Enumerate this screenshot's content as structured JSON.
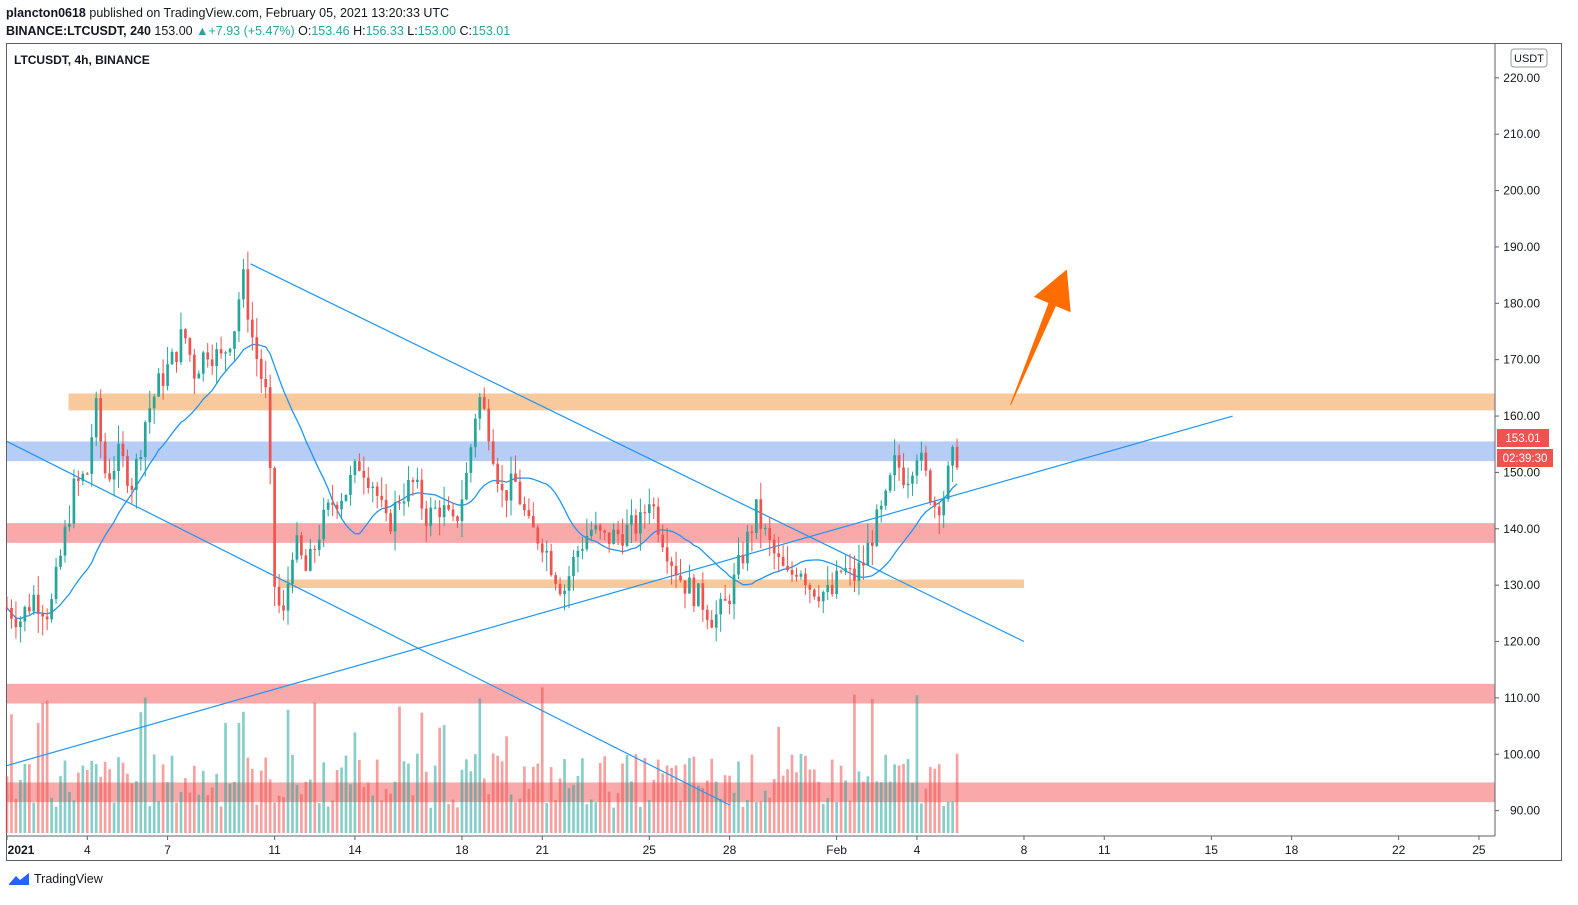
{
  "header": {
    "publisher": "plancton0618",
    "published_text": "published on TradingView.com, February 05, 2021 13:20:33 UTC",
    "symbol_line": "BINANCE:LTCUSDT, 240",
    "last": "153.00",
    "change": "+7.93 (+5.47%)",
    "o_label": "O:",
    "o": "153.46",
    "h_label": "H:",
    "h": "156.33",
    "l_label": "L:",
    "l": "153.00",
    "c_label": "C:",
    "c": "153.01"
  },
  "chart_title": "LTCUSDT, 4h, BINANCE",
  "currency_label": "USDT",
  "price_label": "153.01",
  "countdown_label": "02:39:30",
  "branding": "TradingView",
  "colors": {
    "up": "#26a69a",
    "down": "#ef5350",
    "ma": "#2196f3",
    "trend": "#2196f3",
    "orange_zone": "#f6c08c",
    "blue_zone": "#a9c4f5",
    "red_zone": "#f89a9a",
    "arrow": "#ff6d00"
  },
  "chart_data": {
    "type": "candlestick",
    "symbol": "LTCUSDT",
    "interval": "4h",
    "exchange": "BINANCE",
    "y_ticks": [
      220,
      210,
      200,
      190,
      180,
      170,
      160,
      150,
      140,
      130,
      120,
      110,
      100,
      90
    ],
    "y_range": [
      85.5,
      226
    ],
    "x_ticks": [
      {
        "label": "2021",
        "day": 1
      },
      {
        "label": "4",
        "day": 4
      },
      {
        "label": "7",
        "day": 7
      },
      {
        "label": "11",
        "day": 11
      },
      {
        "label": "14",
        "day": 14
      },
      {
        "label": "18",
        "day": 18
      },
      {
        "label": "21",
        "day": 21
      },
      {
        "label": "25",
        "day": 25
      },
      {
        "label": "28",
        "day": 28
      },
      {
        "label": "Feb",
        "day": 32
      },
      {
        "label": "4",
        "day": 35
      },
      {
        "label": "8",
        "day": 39
      },
      {
        "label": "11",
        "day": 42
      },
      {
        "label": "15",
        "day": 46
      },
      {
        "label": "18",
        "day": 49
      },
      {
        "label": "22",
        "day": 53
      },
      {
        "label": "25",
        "day": 56
      }
    ],
    "x_range_days": [
      1,
      56.6
    ],
    "price_path": [
      [
        1,
        126
      ],
      [
        1.5,
        124
      ],
      [
        2,
        128
      ],
      [
        2.6,
        125
      ],
      [
        3,
        135
      ],
      [
        3.5,
        147
      ],
      [
        4,
        150
      ],
      [
        4.3,
        162
      ],
      [
        4.7,
        149
      ],
      [
        5.2,
        153
      ],
      [
        5.7,
        148
      ],
      [
        6.2,
        160
      ],
      [
        6.7,
        166
      ],
      [
        7.2,
        170
      ],
      [
        7.6,
        175
      ],
      [
        8,
        168
      ],
      [
        8.5,
        172
      ],
      [
        9,
        170
      ],
      [
        9.5,
        176
      ],
      [
        9.8,
        185
      ],
      [
        10.2,
        173
      ],
      [
        10.7,
        163
      ],
      [
        11,
        130
      ],
      [
        11.3,
        123
      ],
      [
        11.7,
        138
      ],
      [
        12.2,
        132
      ],
      [
        12.7,
        140
      ],
      [
        13.2,
        145
      ],
      [
        13.7,
        147
      ],
      [
        14.2,
        152
      ],
      [
        14.7,
        148
      ],
      [
        15.2,
        140
      ],
      [
        15.7,
        146
      ],
      [
        16.2,
        148
      ],
      [
        16.7,
        142
      ],
      [
        17.2,
        144
      ],
      [
        17.7,
        140
      ],
      [
        18.2,
        150
      ],
      [
        18.6,
        164
      ],
      [
        19,
        158
      ],
      [
        19.5,
        146
      ],
      [
        20,
        148
      ],
      [
        20.5,
        140
      ],
      [
        21,
        138
      ],
      [
        21.4,
        133
      ],
      [
        21.8,
        129
      ],
      [
        22.3,
        136
      ],
      [
        22.8,
        140
      ],
      [
        23.3,
        138
      ],
      [
        23.8,
        139
      ],
      [
        24.3,
        140
      ],
      [
        24.7,
        141
      ],
      [
        25,
        146
      ],
      [
        25.4,
        140
      ],
      [
        25.8,
        135
      ],
      [
        26.2,
        131
      ],
      [
        26.6,
        129
      ],
      [
        27,
        127
      ],
      [
        27.4,
        124
      ],
      [
        27.8,
        126
      ],
      [
        28.2,
        131
      ],
      [
        28.6,
        137
      ],
      [
        29,
        143
      ],
      [
        29.4,
        138
      ],
      [
        29.8,
        134
      ],
      [
        30.2,
        131
      ],
      [
        30.6,
        134
      ],
      [
        31,
        130
      ],
      [
        31.4,
        129
      ],
      [
        31.8,
        128
      ],
      [
        32.2,
        133
      ],
      [
        32.6,
        131
      ],
      [
        33,
        134
      ],
      [
        33.4,
        140
      ],
      [
        33.8,
        144
      ],
      [
        34.2,
        152
      ],
      [
        34.6,
        149
      ],
      [
        35,
        154
      ],
      [
        35.4,
        148
      ],
      [
        35.7,
        144
      ],
      [
        36,
        146
      ],
      [
        36.3,
        152
      ],
      [
        36.5,
        153
      ]
    ],
    "volume": {
      "max_label": "",
      "bars_seed": 7
    },
    "zones": [
      {
        "color": "orange",
        "low": 161,
        "high": 164,
        "from_day": 3.3,
        "to_day": 56.6
      },
      {
        "color": "blue",
        "low": 152,
        "high": 155.5,
        "from_day": 1,
        "to_day": 56.6
      },
      {
        "color": "red",
        "low": 137.5,
        "high": 141,
        "from_day": 1,
        "to_day": 56.6
      },
      {
        "color": "orange",
        "low": 129.5,
        "high": 131,
        "from_day": 11.2,
        "to_day": 39
      },
      {
        "color": "red",
        "low": 109,
        "high": 112.5,
        "from_day": 1,
        "to_day": 56.6
      },
      {
        "color": "red",
        "low": 91.5,
        "high": 95,
        "from_day": 1,
        "to_day": 56.6
      }
    ],
    "trendlines": [
      {
        "from": [
          10.1,
          187
        ],
        "to": [
          39,
          120
        ]
      },
      {
        "from": [
          1,
          155.5
        ],
        "to": [
          28,
          91
        ]
      },
      {
        "from": [
          1,
          98
        ],
        "to": [
          46.8,
          160
        ]
      }
    ],
    "arrow": {
      "from": [
        38.5,
        162
      ],
      "to": [
        40.6,
        186
      ]
    }
  }
}
